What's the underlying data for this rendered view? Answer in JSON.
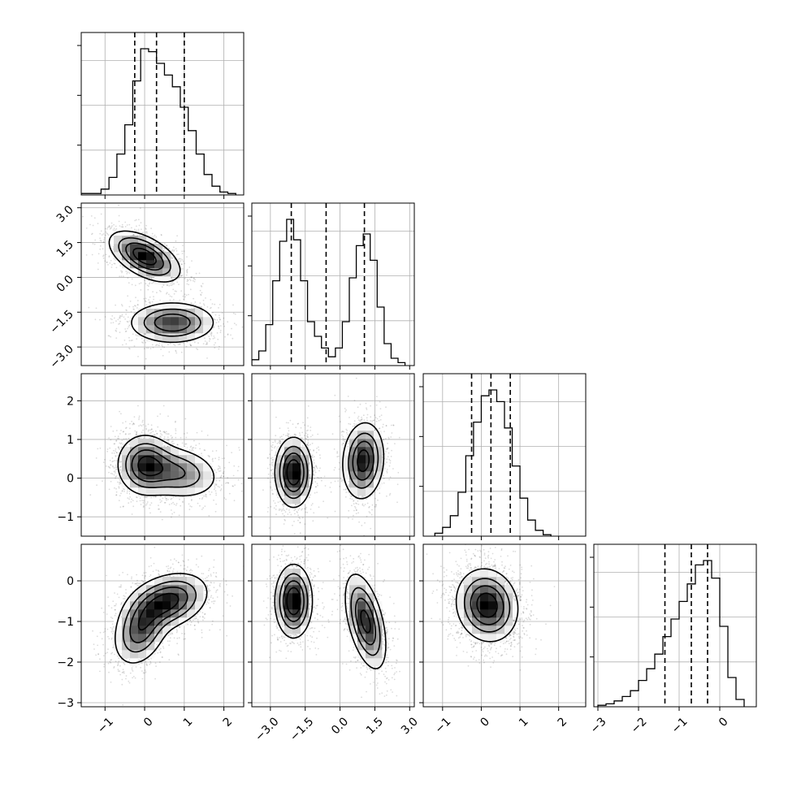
{
  "chart_data": {
    "type": "corner",
    "dimensions": 4,
    "axis_labels": [],
    "title": "",
    "grid": true,
    "colors": {
      "contour": "#000000",
      "density": "#000000",
      "background": "#ffffff",
      "grid": "#b0b0b0"
    },
    "axes": [
      {
        "range": [
          -1.6,
          2.5
        ],
        "ticks": [
          -1,
          0,
          1,
          2
        ],
        "tick_labels": [
          "−1",
          "0",
          "1",
          "2"
        ]
      },
      {
        "range": [
          -3.8,
          3.2
        ],
        "ticks": [
          -3.0,
          -1.5,
          0.0,
          1.5,
          3.0
        ],
        "tick_labels": [
          "−3.0",
          "−1.5",
          "0.0",
          "1.5",
          "3.0"
        ]
      },
      {
        "range": [
          -1.5,
          2.7
        ],
        "ticks": [
          -1,
          0,
          1,
          2
        ],
        "tick_labels": [
          "−1",
          "0",
          "1",
          "2"
        ]
      },
      {
        "range": [
          -3.1,
          0.9
        ],
        "ticks": [
          -3,
          -2,
          -1,
          0
        ],
        "tick_labels": [
          "−3",
          "−2",
          "−1",
          "0"
        ]
      }
    ],
    "diagonal_histograms": [
      {
        "param": 0,
        "quantiles": [
          -0.25,
          0.3,
          1.0
        ],
        "bin_edges": [
          -1.6,
          -1.1,
          -0.9,
          -0.7,
          -0.5,
          -0.3,
          -0.1,
          0.1,
          0.3,
          0.5,
          0.7,
          0.9,
          1.1,
          1.3,
          1.5,
          1.7,
          1.9,
          2.1,
          2.3
        ],
        "counts": [
          0.01,
          0.04,
          0.12,
          0.28,
          0.48,
          0.78,
          1.0,
          0.98,
          0.9,
          0.82,
          0.74,
          0.6,
          0.44,
          0.28,
          0.14,
          0.06,
          0.02,
          0.01
        ]
      },
      {
        "param": 1,
        "quantiles": [
          -2.1,
          -0.6,
          1.05
        ],
        "bin_edges": [
          -3.8,
          -3.5,
          -3.2,
          -2.9,
          -2.6,
          -2.3,
          -2.0,
          -1.7,
          -1.4,
          -1.1,
          -0.8,
          -0.5,
          -0.2,
          0.1,
          0.4,
          0.7,
          1.0,
          1.3,
          1.6,
          1.9,
          2.2,
          2.5,
          2.8
        ],
        "counts": [
          0.04,
          0.1,
          0.28,
          0.58,
          0.85,
          1.0,
          0.86,
          0.58,
          0.3,
          0.2,
          0.12,
          0.06,
          0.12,
          0.3,
          0.6,
          0.82,
          0.9,
          0.72,
          0.4,
          0.15,
          0.05,
          0.02
        ]
      },
      {
        "param": 2,
        "quantiles": [
          -0.25,
          0.25,
          0.75
        ],
        "bin_edges": [
          -1.2,
          -1.0,
          -0.8,
          -0.6,
          -0.4,
          -0.2,
          0.0,
          0.2,
          0.4,
          0.6,
          0.8,
          1.0,
          1.2,
          1.4,
          1.6,
          1.8
        ],
        "counts": [
          0.02,
          0.06,
          0.14,
          0.3,
          0.55,
          0.78,
          0.96,
          1.0,
          0.92,
          0.74,
          0.48,
          0.26,
          0.11,
          0.04,
          0.01
        ]
      },
      {
        "param": 3,
        "quantiles": [
          -1.35,
          -0.7,
          -0.3
        ],
        "bin_edges": [
          -3.0,
          -2.8,
          -2.6,
          -2.4,
          -2.2,
          -2.0,
          -1.8,
          -1.6,
          -1.4,
          -1.2,
          -1.0,
          -0.8,
          -0.6,
          -0.4,
          -0.2,
          0.0,
          0.2,
          0.4,
          0.6
        ],
        "counts": [
          0.01,
          0.02,
          0.04,
          0.07,
          0.11,
          0.18,
          0.26,
          0.36,
          0.48,
          0.6,
          0.72,
          0.84,
          0.97,
          1.0,
          0.88,
          0.55,
          0.2,
          0.05
        ]
      }
    ],
    "pair_densities": [
      {
        "x": 0,
        "y": 1,
        "modes": [
          {
            "cx": 0.0,
            "cy": 0.9,
            "sx": 0.45,
            "sy": 0.55,
            "rho": -0.55,
            "w": 1.0
          },
          {
            "cx": 0.7,
            "cy": -1.95,
            "sx": 0.55,
            "sy": 0.45,
            "rho": 0.0,
            "w": 0.8
          }
        ]
      },
      {
        "x": 0,
        "y": 2,
        "modes": [
          {
            "cx": 0.0,
            "cy": 0.35,
            "sx": 0.35,
            "sy": 0.4,
            "rho": 0.0,
            "w": 1.0
          },
          {
            "cx": 0.8,
            "cy": 0.15,
            "sx": 0.55,
            "sy": 0.35,
            "rho": -0.2,
            "w": 0.8
          }
        ]
      },
      {
        "x": 1,
        "y": 2,
        "modes": [
          {
            "cx": -2.0,
            "cy": 0.15,
            "sx": 0.4,
            "sy": 0.45,
            "rho": 0.0,
            "w": 1.0
          },
          {
            "cx": 1.0,
            "cy": 0.45,
            "sx": 0.45,
            "sy": 0.5,
            "rho": 0.1,
            "w": 0.9
          }
        ]
      },
      {
        "x": 0,
        "y": 3,
        "modes": [
          {
            "cx": 0.6,
            "cy": -0.5,
            "sx": 0.5,
            "sy": 0.35,
            "rho": 0.3,
            "w": 1.0
          },
          {
            "cx": -0.1,
            "cy": -1.2,
            "sx": 0.35,
            "sy": 0.45,
            "rho": 0.3,
            "w": 0.8
          }
        ]
      },
      {
        "x": 1,
        "y": 3,
        "modes": [
          {
            "cx": -2.0,
            "cy": -0.5,
            "sx": 0.4,
            "sy": 0.45,
            "rho": 0.0,
            "w": 1.0
          },
          {
            "cx": 1.1,
            "cy": -1.0,
            "sx": 0.45,
            "sy": 0.6,
            "rho": -0.5,
            "w": 0.85
          }
        ]
      },
      {
        "x": 2,
        "y": 3,
        "modes": [
          {
            "cx": 0.15,
            "cy": -0.6,
            "sx": 0.4,
            "sy": 0.45,
            "rho": -0.1,
            "w": 1.0
          }
        ]
      }
    ]
  }
}
